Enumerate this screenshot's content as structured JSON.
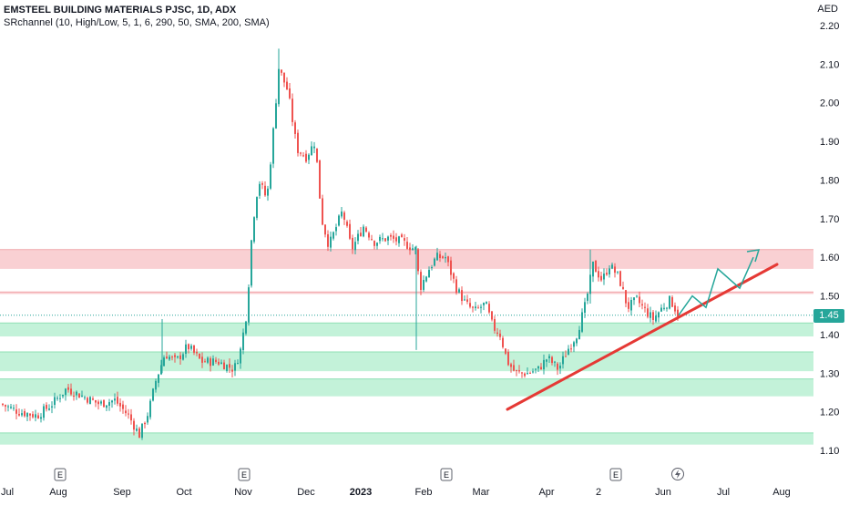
{
  "header": {
    "title": "EMSTEEL BUILDING MATERIALS PJSC, 1D, ADX",
    "indicator": "SRchannel (10, High/Low, 5, 1, 6, 290, 50, SMA, 200, SMA)",
    "currency": "AED"
  },
  "last_price": "1.45",
  "colors": {
    "up": "#26a69a",
    "down": "#ef5350",
    "resistance_zone": "#f8c8cb",
    "support_zone": "#b9f0d2",
    "trendline": "#e53935",
    "projection": "#26a69a"
  },
  "chart_data": {
    "type": "candlestick",
    "title": "EMSTEEL BUILDING MATERIALS PJSC, 1D, ADX",
    "ylim": [
      1.08,
      2.24
    ],
    "y_ticks": [
      "2.20",
      "2.10",
      "2.00",
      "1.90",
      "1.80",
      "1.70",
      "1.60",
      "1.50",
      "1.40",
      "1.30",
      "1.20",
      "1.10"
    ],
    "x_ticks": [
      "Jul",
      "Aug",
      "Sep",
      "Oct",
      "Nov",
      "Dec",
      "2023",
      "Feb",
      "Mar",
      "Apr",
      "2",
      "Jun",
      "Jul",
      "Aug"
    ],
    "earnings_markers": [
      "E",
      "E",
      "E",
      "E"
    ],
    "zones": [
      {
        "kind": "resistance",
        "from": 1.57,
        "to": 1.62
      },
      {
        "kind": "resistance_line",
        "from": 1.505,
        "to": 1.51
      },
      {
        "kind": "support",
        "from": 1.395,
        "to": 1.43
      },
      {
        "kind": "support",
        "from": 1.305,
        "to": 1.355
      },
      {
        "kind": "support",
        "from": 1.24,
        "to": 1.285
      },
      {
        "kind": "support",
        "from": 1.115,
        "to": 1.145
      }
    ],
    "trendline": {
      "start": [
        "Mar",
        1.21
      ],
      "end": [
        "Jul",
        1.58
      ]
    },
    "projection": [
      1.45,
      1.5,
      1.47,
      1.57,
      1.52,
      1.6
    ]
  }
}
